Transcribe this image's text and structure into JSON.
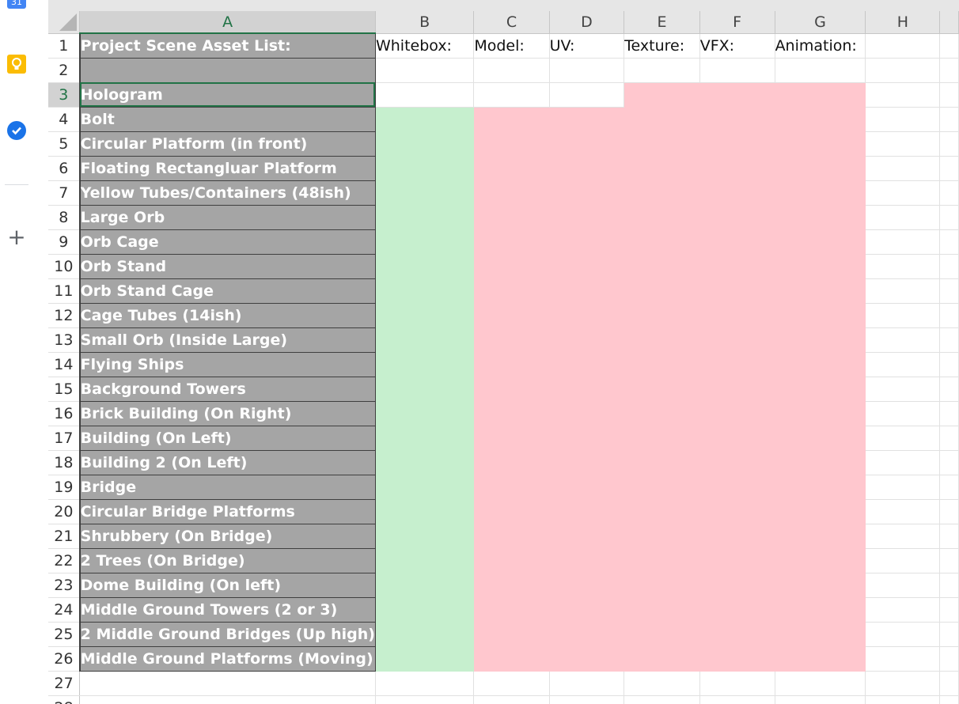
{
  "columns": [
    "A",
    "B",
    "C",
    "D",
    "E",
    "F",
    "G",
    "H"
  ],
  "selected_column": "A",
  "selected_row": 3,
  "headers": {
    "a1": "Project Scene Asset List:",
    "whitebox": "Whitebox:",
    "model": "Model:",
    "uv": "UV:",
    "texture": "Texture:",
    "vfx": "VFX:",
    "animation": "Animation:"
  },
  "assets": [
    "",
    "Hologram",
    "Bolt",
    "Circular Platform (in front)",
    "Floating Rectangluar Platform",
    "Yellow Tubes/Containers (48ish)",
    "Large Orb",
    "Orb Cage",
    "Orb Stand",
    "Orb Stand Cage",
    "Cage Tubes (14ish)",
    "Small Orb (Inside Large)",
    "Flying Ships",
    "Background Towers",
    "Brick Building (On Right)",
    "Building (On Left)",
    "Building 2 (On Left)",
    "Bridge",
    "Circular Bridge Platforms",
    "Shrubbery (On Bridge)",
    "2 Trees (On Bridge)",
    "Dome Building (On left)",
    "Middle Ground Towers (2 or 3)",
    "2 Middle Ground Bridges (Up high)",
    "Middle Ground Platforms (Moving)"
  ],
  "fill_colors": {
    "done": "#c6efce",
    "todo": "#ffc7ce",
    "asset_cell": "#a5a5a5",
    "selection": "#217346"
  },
  "status_fills": {
    "note": "row 3: columns E-G todo; rows 4-26: B done, C-G todo"
  },
  "side_icons": [
    "calendar-icon",
    "keep-icon",
    "tasks-icon",
    "add-icon"
  ]
}
